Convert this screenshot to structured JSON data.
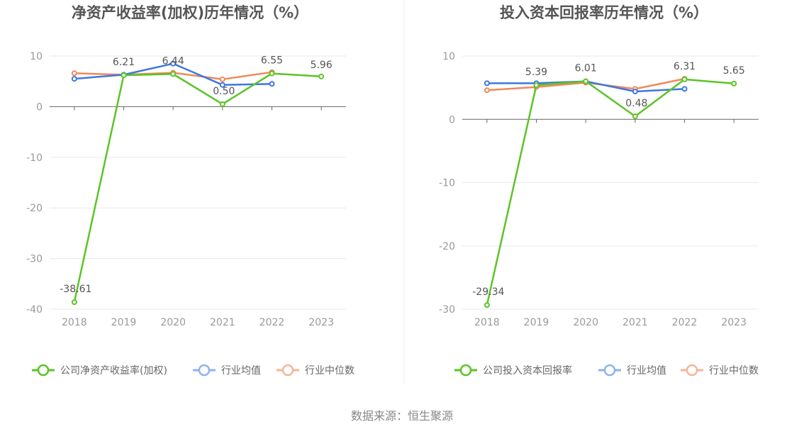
{
  "chart_data": [
    {
      "type": "line",
      "title": "净资产收益率(加权)历年情况（%）",
      "categories": [
        "2018",
        "2019",
        "2020",
        "2021",
        "2022",
        "2023"
      ],
      "ylim": [
        -40,
        10
      ],
      "yticks": [
        "10",
        "0",
        "-10",
        "-20",
        "-30",
        "-40"
      ],
      "grid": true,
      "legend_position": "bottom",
      "series": [
        {
          "name": "公司净资产收益率(加权)",
          "color": "#5bc425",
          "values": [
            -38.61,
            6.21,
            6.44,
            0.5,
            6.55,
            5.96
          ],
          "labels": [
            "-38.61",
            "6.21",
            "6.44",
            "0.50",
            "6.55",
            "5.96"
          ]
        },
        {
          "name": "行业均值",
          "color": "#3f77e0",
          "values": [
            5.5,
            6.3,
            8.5,
            4.3,
            4.5,
            null
          ]
        },
        {
          "name": "行业中位数",
          "color": "#f0895a",
          "values": [
            6.6,
            6.3,
            6.7,
            5.4,
            6.8,
            null
          ]
        }
      ]
    },
    {
      "type": "line",
      "title": "投入资本回报率历年情况（%）",
      "categories": [
        "2018",
        "2019",
        "2020",
        "2021",
        "2022",
        "2023"
      ],
      "ylim": [
        -30,
        10
      ],
      "yticks": [
        "10",
        "0",
        "-10",
        "-20",
        "-30"
      ],
      "grid": true,
      "legend_position": "bottom",
      "series": [
        {
          "name": "公司投入资本回报率",
          "color": "#5bc425",
          "values": [
            -29.34,
            5.39,
            6.01,
            0.48,
            6.31,
            5.65
          ],
          "labels": [
            "-29.34",
            "5.39",
            "6.01",
            "0.48",
            "6.31",
            "5.65"
          ]
        },
        {
          "name": "行业均值",
          "color": "#3f77e0",
          "values": [
            5.7,
            5.7,
            6.0,
            4.4,
            4.8,
            null
          ]
        },
        {
          "name": "行业中位数",
          "color": "#f0895a",
          "values": [
            4.6,
            5.1,
            5.8,
            4.8,
            6.4,
            null
          ]
        }
      ]
    }
  ],
  "footer": {
    "source": "数据来源：恒生聚源"
  }
}
